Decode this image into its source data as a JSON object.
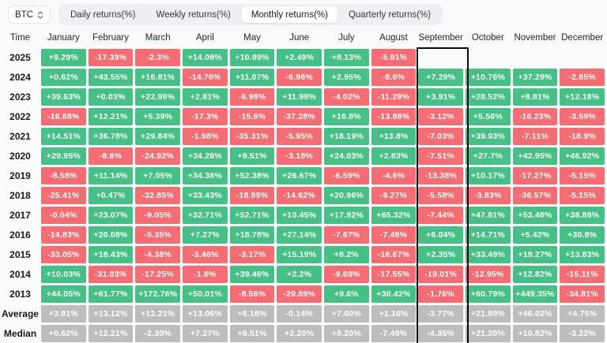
{
  "topbar": {
    "coin": "BTC",
    "tabs": [
      {
        "label": "Daily returns(%)",
        "active": false
      },
      {
        "label": "Weekly returns(%)",
        "active": false
      },
      {
        "label": "Monthly returns(%)",
        "active": true
      },
      {
        "label": "Quarterly returns(%)",
        "active": false
      }
    ]
  },
  "table": {
    "time_header": "Time",
    "months": [
      "January",
      "February",
      "March",
      "April",
      "May",
      "June",
      "July",
      "August",
      "September",
      "October",
      "November",
      "December"
    ],
    "highlighted_month": "September",
    "rows": [
      {
        "label": "2025",
        "type": "year",
        "values": [
          "+9.29%",
          "-17.39%",
          "-2.3%",
          "+14.08%",
          "+10.99%",
          "+2.49%",
          "+8.13%",
          "-5.91%",
          "",
          "",
          "",
          ""
        ]
      },
      {
        "label": "2024",
        "type": "year",
        "values": [
          "+0.62%",
          "+43.55%",
          "+16.81%",
          "-14.76%",
          "+11.07%",
          "-6.96%",
          "+2.95%",
          "-8.6%",
          "+7.29%",
          "+10.76%",
          "+37.29%",
          "-2.85%"
        ]
      },
      {
        "label": "2023",
        "type": "year",
        "values": [
          "+39.63%",
          "+0.03%",
          "+22.96%",
          "+2.81%",
          "-6.98%",
          "+11.98%",
          "-4.02%",
          "-11.29%",
          "+3.91%",
          "+28.52%",
          "+8.81%",
          "+12.18%"
        ]
      },
      {
        "label": "2022",
        "type": "year",
        "values": [
          "-16.68%",
          "+12.21%",
          "+5.39%",
          "-17.3%",
          "-15.6%",
          "-37.28%",
          "+16.8%",
          "-13.88%",
          "-3.12%",
          "+5.56%",
          "-16.23%",
          "-3.59%"
        ]
      },
      {
        "label": "2021",
        "type": "year",
        "values": [
          "+14.51%",
          "+36.78%",
          "+29.84%",
          "-1.98%",
          "-35.31%",
          "-5.95%",
          "+18.19%",
          "+13.8%",
          "-7.03%",
          "+39.93%",
          "-7.11%",
          "-18.9%"
        ]
      },
      {
        "label": "2020",
        "type": "year",
        "values": [
          "+29.95%",
          "-8.6%",
          "-24.92%",
          "+34.26%",
          "+9.51%",
          "-3.18%",
          "+24.03%",
          "+2.83%",
          "-7.51%",
          "+27.7%",
          "+42.95%",
          "+46.92%"
        ]
      },
      {
        "label": "2019",
        "type": "year",
        "values": [
          "-8.58%",
          "+11.14%",
          "+7.05%",
          "+34.36%",
          "+52.38%",
          "+26.67%",
          "-6.59%",
          "-4.6%",
          "-13.38%",
          "+10.17%",
          "-17.27%",
          "-5.15%"
        ]
      },
      {
        "label": "2018",
        "type": "year",
        "values": [
          "-25.41%",
          "+0.47%",
          "-32.85%",
          "+33.43%",
          "-18.99%",
          "-14.62%",
          "+20.96%",
          "-9.27%",
          "-5.58%",
          "-3.83%",
          "-36.57%",
          "-5.15%"
        ]
      },
      {
        "label": "2017",
        "type": "year",
        "values": [
          "-0.04%",
          "+23.07%",
          "-9.05%",
          "+32.71%",
          "+52.71%",
          "+10.45%",
          "+17.92%",
          "+65.32%",
          "-7.44%",
          "+47.81%",
          "+53.48%",
          "+38.89%"
        ]
      },
      {
        "label": "2016",
        "type": "year",
        "values": [
          "-14.83%",
          "+20.08%",
          "-5.35%",
          "+7.27%",
          "+18.78%",
          "+27.14%",
          "-7.67%",
          "-7.49%",
          "+6.04%",
          "+14.71%",
          "+5.42%",
          "+30.8%"
        ]
      },
      {
        "label": "2015",
        "type": "year",
        "values": [
          "-33.05%",
          "+18.43%",
          "-4.38%",
          "-3.46%",
          "-3.17%",
          "+15.19%",
          "+8.2%",
          "-18.67%",
          "+2.35%",
          "+33.49%",
          "+19.27%",
          "+13.83%"
        ]
      },
      {
        "label": "2014",
        "type": "year",
        "values": [
          "+10.03%",
          "-31.03%",
          "-17.25%",
          "-1.6%",
          "+39.46%",
          "+2.2%",
          "-9.69%",
          "-17.55%",
          "-19.01%",
          "-12.95%",
          "+12.82%",
          "-15.11%"
        ]
      },
      {
        "label": "2013",
        "type": "year",
        "values": [
          "+44.05%",
          "+61.77%",
          "+172.76%",
          "+50.01%",
          "-8.56%",
          "-29.89%",
          "+9.6%",
          "+30.42%",
          "-1.76%",
          "+60.79%",
          "+449.35%",
          "-34.81%"
        ]
      },
      {
        "label": "Average",
        "type": "summary",
        "values": [
          "+3.81%",
          "+13.12%",
          "+12.21%",
          "+13.06%",
          "+8.18%",
          "-0.14%",
          "+7.60%",
          "+1.16%",
          "-3.77%",
          "+21.89%",
          "+46.02%",
          "+4.75%"
        ]
      },
      {
        "label": "Median",
        "type": "summary",
        "values": [
          "+0.62%",
          "+12.21%",
          "-2.30%",
          "+7.27%",
          "+9.51%",
          "+2.20%",
          "+8.20%",
          "-7.49%",
          "-4.35%",
          "+21.20%",
          "+10.82%",
          "-3.22%"
        ]
      }
    ]
  },
  "colors": {
    "positive": "#45c186",
    "negative": "#f56d73",
    "summary": "#bdbdbd",
    "highlight_border": "#0a0a0a"
  }
}
